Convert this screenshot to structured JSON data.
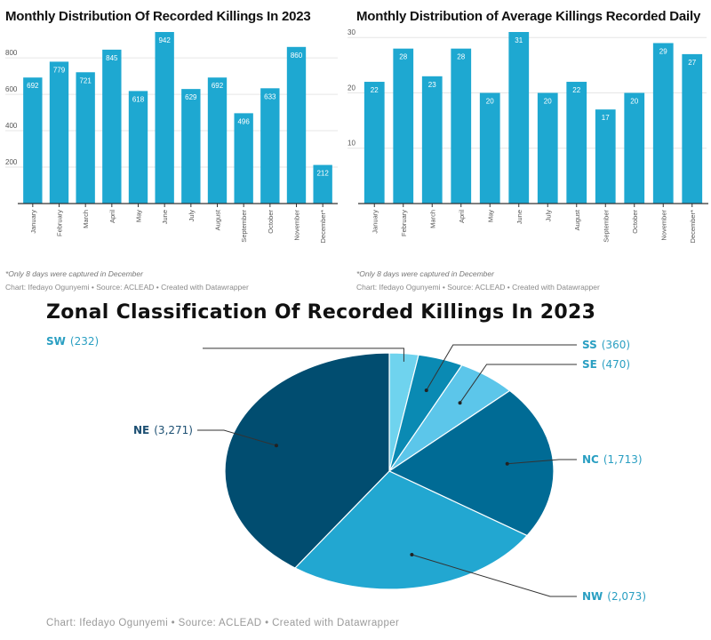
{
  "colors": {
    "bar": "#1ea8d1",
    "grid": "#e6e6e6",
    "axis": "#333333",
    "tick_text": "#555555",
    "value_text": "#ffffff",
    "pie_label_light": "#2a9fc2",
    "pie_label_dark": "#1c4f72"
  },
  "chart_data": [
    {
      "type": "bar",
      "title": "Monthly Distribution Of Recorded Killings In 2023",
      "categories": [
        "January",
        "February",
        "March",
        "April",
        "May",
        "June",
        "July",
        "August",
        "September",
        "October",
        "November",
        "December*"
      ],
      "values": [
        692,
        779,
        721,
        845,
        618,
        942,
        629,
        692,
        496,
        633,
        860,
        212
      ],
      "value_labels": [
        "692",
        "779",
        "721",
        "845",
        "618",
        "942",
        "629",
        "692",
        "496",
        "633",
        "860",
        "212"
      ],
      "ylim": [
        0,
        942
      ],
      "yticks": [
        200,
        400,
        600,
        800
      ],
      "ytick_labels": [
        "200",
        "400",
        "600",
        "800"
      ],
      "grid": true,
      "note": "*Only 8 days were captured in December",
      "credit": "Chart: Ifedayo Ogunyemi • Source: ACLEAD • Created with Datawrapper"
    },
    {
      "type": "bar",
      "title": "Monthly Distribution of Average Killings Recorded Daily",
      "categories": [
        "January",
        "February",
        "March",
        "April",
        "May",
        "June",
        "July",
        "August",
        "September",
        "October",
        "November",
        "December*"
      ],
      "values": [
        22,
        28,
        23,
        28,
        20,
        31,
        20,
        22,
        17,
        20,
        29,
        27
      ],
      "value_labels": [
        "22",
        "28",
        "23",
        "28",
        "20",
        "31",
        "20",
        "22",
        "17",
        "20",
        "29",
        "27"
      ],
      "ylim": [
        0,
        31
      ],
      "yticks": [
        10,
        20,
        30
      ],
      "ytick_labels": [
        "10",
        "20",
        "30"
      ],
      "grid": true,
      "note": "*Only 8 days were captured in December",
      "credit": "Chart: Ifedayo Ogunyemi • Source: ACLEAD • Created with Datawrapper"
    },
    {
      "type": "pie",
      "title": "Zonal Classification Of Recorded Killings In 2023",
      "slices": [
        {
          "zone": "SW",
          "value": 232,
          "value_label": "(232)",
          "color": "#6fd3ee",
          "label_color": "#2a9fc2"
        },
        {
          "zone": "SS",
          "value": 360,
          "value_label": "(360)",
          "color": "#0a8ab3",
          "label_color": "#2a9fc2"
        },
        {
          "zone": "SE",
          "value": 470,
          "value_label": "(470)",
          "color": "#5cc6ea",
          "label_color": "#2a9fc2"
        },
        {
          "zone": "NC",
          "value": 1713,
          "value_label": "(1,713)",
          "color": "#006b95",
          "label_color": "#2a9fc2"
        },
        {
          "zone": "NW",
          "value": 2073,
          "value_label": "(2,073)",
          "color": "#22a7d1",
          "label_color": "#2a9fc2"
        },
        {
          "zone": "NE",
          "value": 3271,
          "value_label": "(3,271)",
          "color": "#014d70",
          "label_color": "#1c4f72"
        }
      ],
      "credit": "Chart: Ifedayo Ogunyemi • Source: ACLEAD • Created with Datawrapper"
    }
  ]
}
